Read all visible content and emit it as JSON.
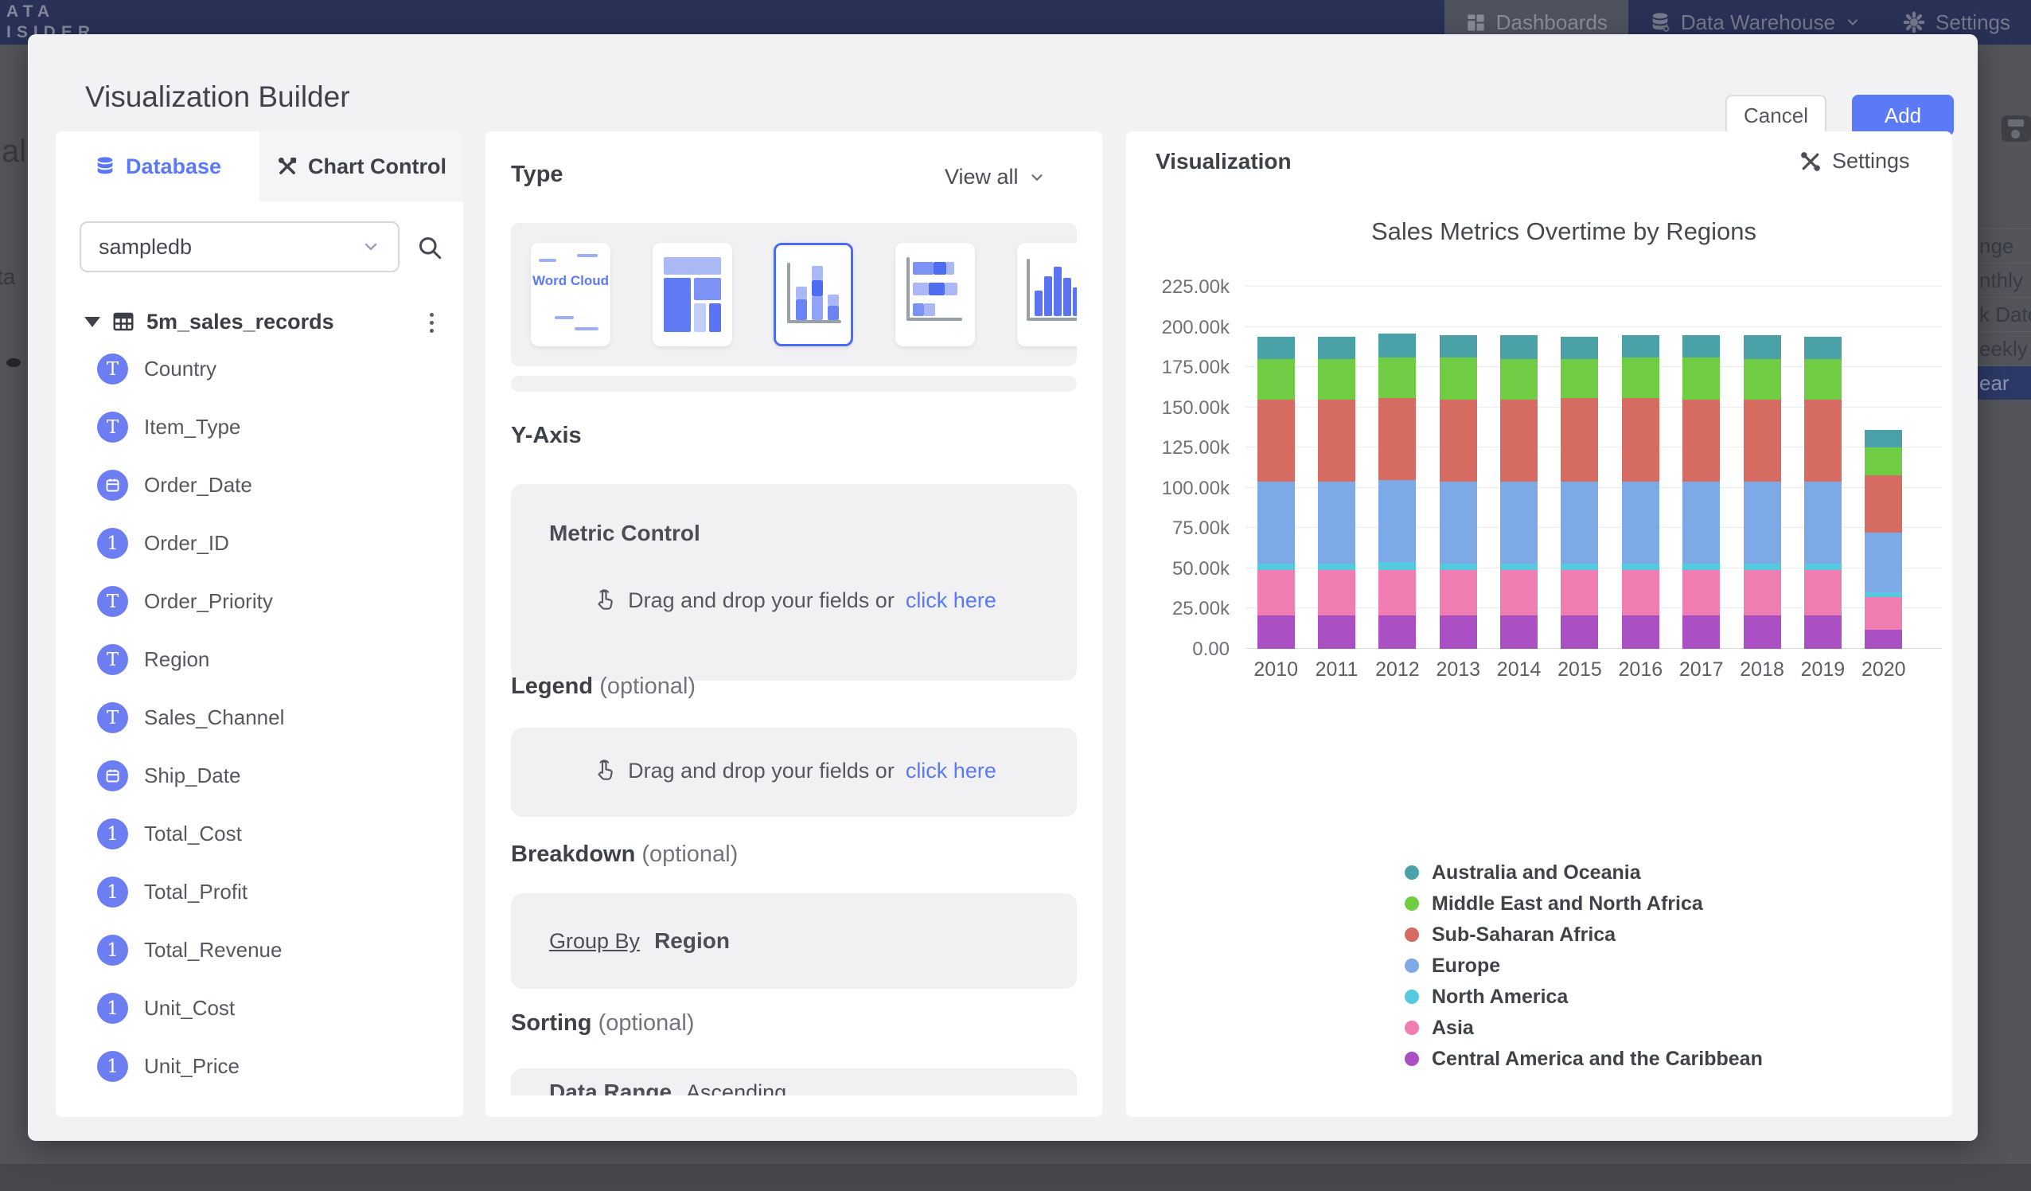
{
  "navbar": {
    "logo_line1": "ATA",
    "logo_line2": "ISIDER",
    "dashboards_label": "Dashboards",
    "warehouse_label": "Data Warehouse",
    "settings_label": "Settings"
  },
  "background": {
    "left_fragments": {
      "text1": "al",
      "text2": "ta"
    },
    "right_menu": {
      "items": [
        "nge",
        "nthly",
        "k Date",
        "eekly",
        "ear"
      ],
      "highlighted": "ear",
      "highlight_color": "#2c3967"
    }
  },
  "modal": {
    "title": "Visualization Builder",
    "cancel_label": "Cancel",
    "add_label": "Add"
  },
  "left_panel": {
    "tabs": {
      "database": "Database",
      "chart_control": "Chart Control"
    },
    "database_select": {
      "value": "sampledb"
    },
    "table_name": "5m_sales_records",
    "fields": [
      {
        "name": "Country",
        "type": "text"
      },
      {
        "name": "Item_Type",
        "type": "text"
      },
      {
        "name": "Order_Date",
        "type": "date"
      },
      {
        "name": "Order_ID",
        "type": "number"
      },
      {
        "name": "Order_Priority",
        "type": "text"
      },
      {
        "name": "Region",
        "type": "text"
      },
      {
        "name": "Sales_Channel",
        "type": "text"
      },
      {
        "name": "Ship_Date",
        "type": "date"
      },
      {
        "name": "Total_Cost",
        "type": "number"
      },
      {
        "name": "Total_Profit",
        "type": "number"
      },
      {
        "name": "Total_Revenue",
        "type": "number"
      },
      {
        "name": "Unit_Cost",
        "type": "number"
      },
      {
        "name": "Unit_Price",
        "type": "number"
      }
    ]
  },
  "builder": {
    "type_title": "Type",
    "view_all_label": "View all",
    "chart_types": [
      "word-cloud",
      "treemap",
      "stacked-column",
      "stacked-bar",
      "column"
    ],
    "selected_type_index": 2,
    "wordcloud_text": "Word Cloud",
    "y_axis_title": "Y-Axis",
    "metric_control_label": "Metric Control",
    "drop_hint": "Drag and drop your fields or",
    "drop_link": "click here",
    "legend_title": "Legend",
    "optional_suffix": "(optional)",
    "breakdown_title": "Breakdown",
    "group_by_label": "Group By",
    "group_by_value": "Region",
    "sorting_title": "Sorting",
    "sorting_label": "Data Range",
    "sorting_value": "Ascending"
  },
  "viz": {
    "panel_title": "Visualization",
    "settings_label": "Settings"
  },
  "colors": {
    "primary": "#5b79f7",
    "add_button": "#5b7af8",
    "field_icon": "#6d7ef3"
  },
  "chart_data": {
    "type": "bar",
    "stacked": true,
    "title": "Sales Metrics Overtime by Regions",
    "categories": [
      "2010",
      "2011",
      "2012",
      "2013",
      "2014",
      "2015",
      "2016",
      "2017",
      "2018",
      "2019",
      "2020"
    ],
    "series": [
      {
        "name": "Central America and the Caribbean",
        "color": "#ab4fc4",
        "values": [
          21,
          21,
          21,
          21,
          21,
          21,
          21,
          21,
          21,
          21,
          12
        ]
      },
      {
        "name": "Asia",
        "color": "#ef7db2",
        "values": [
          28,
          28,
          28,
          28,
          28,
          28,
          28,
          28,
          28,
          28,
          20
        ]
      },
      {
        "name": "North America",
        "color": "#55c9dd",
        "values": [
          4,
          4,
          5,
          4,
          4,
          4,
          4,
          4,
          4,
          4,
          3
        ]
      },
      {
        "name": "Europe",
        "color": "#7da9e6",
        "values": [
          51,
          51,
          51,
          51,
          51,
          51,
          51,
          51,
          51,
          51,
          37
        ]
      },
      {
        "name": "Sub-Saharan Africa",
        "color": "#d56b61",
        "values": [
          51,
          51,
          51,
          51,
          51,
          52,
          52,
          51,
          51,
          51,
          36
        ]
      },
      {
        "name": "Middle East and North Africa",
        "color": "#70cc42",
        "values": [
          25,
          25,
          25,
          26,
          25,
          24,
          25,
          26,
          25,
          25,
          17
        ]
      },
      {
        "name": "Australia and Oceania",
        "color": "#4ba1a8",
        "values": [
          14,
          14,
          15,
          14,
          15,
          14,
          14,
          14,
          15,
          14,
          11
        ]
      }
    ],
    "unit": "thousands",
    "ylim": [
      0,
      225
    ],
    "y_ticks": [
      "0.00",
      "25.00k",
      "50.00k",
      "75.00k",
      "100.00k",
      "125.00k",
      "150.00k",
      "175.00k",
      "200.00k",
      "225.00k"
    ],
    "grid": true,
    "legend_position": "bottom-left",
    "legend_order_top_to_bottom": [
      "Australia and Oceania",
      "Middle East and North Africa",
      "Sub-Saharan Africa",
      "Europe",
      "North America",
      "Asia",
      "Central America and the Caribbean"
    ]
  }
}
